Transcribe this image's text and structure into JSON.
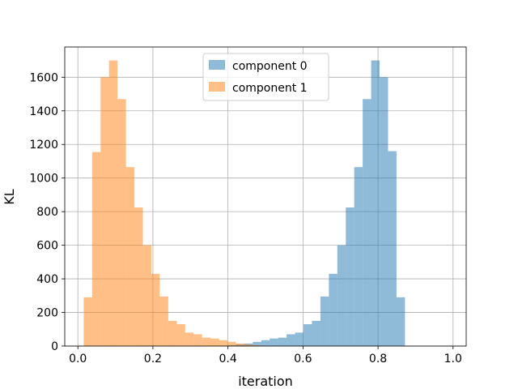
{
  "colors": {
    "series0": "#1f77b4",
    "series1": "#ff7f0e",
    "grid": "#b0b0b0",
    "axis": "#000000",
    "background": "#ffffff"
  },
  "legend": {
    "placement": "upper center"
  },
  "chart_data": {
    "type": "bar",
    "subtype": "histogram",
    "title": "",
    "xlabel": "iteration",
    "ylabel": "KL",
    "xlim": [
      -0.035,
      1.035
    ],
    "ylim": [
      0,
      1780
    ],
    "grid": true,
    "opacity": 0.5,
    "xticks": [
      0.0,
      0.2,
      0.4,
      0.6,
      0.8,
      1.0
    ],
    "xtick_labels": [
      "0.0",
      "0.2",
      "0.4",
      "0.6",
      "0.8",
      "1.0"
    ],
    "yticks": [
      0,
      200,
      400,
      600,
      800,
      1000,
      1200,
      1400,
      1600
    ],
    "ytick_labels": [
      "0",
      "200",
      "400",
      "600",
      "800",
      "1000",
      "1200",
      "1400",
      "1600"
    ],
    "bin_range": [
      0.0155,
      0.9845
    ],
    "bin_count": 43,
    "series": [
      {
        "name": "component 0",
        "color_key": "series0",
        "values": [
          0,
          0,
          0,
          0,
          0,
          0,
          0,
          0,
          0,
          0,
          0,
          0,
          0,
          0,
          0,
          1,
          2,
          5,
          10,
          15,
          25,
          35,
          45,
          50,
          70,
          80,
          130,
          150,
          295,
          430,
          600,
          825,
          1065,
          1470,
          1700,
          1600,
          1160,
          290,
          0,
          0,
          0,
          0,
          0
        ]
      },
      {
        "name": "component 1",
        "color_key": "series1",
        "values": [
          290,
          1155,
          1600,
          1700,
          1470,
          1065,
          825,
          600,
          430,
          295,
          150,
          130,
          80,
          70,
          50,
          45,
          35,
          25,
          15,
          10,
          5,
          2,
          1,
          0,
          0,
          0,
          0,
          0,
          0,
          0,
          0,
          0,
          0,
          0,
          0,
          0,
          0,
          0,
          0,
          0,
          0,
          0,
          0
        ]
      }
    ]
  }
}
